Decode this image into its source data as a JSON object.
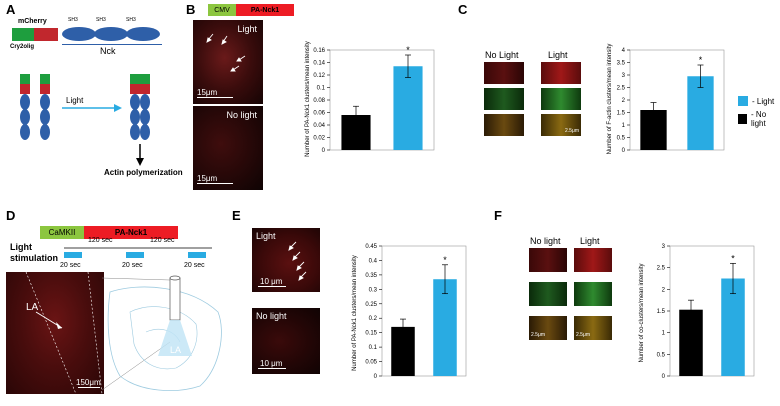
{
  "panels": {
    "A": {
      "label": "A",
      "construct": {
        "cry2olig": "Cry2olig",
        "mcherry": "mCherry",
        "sh3": [
          "SH3",
          "SH3",
          "SH3"
        ],
        "nck": "Nck"
      },
      "arrow_label": "Light",
      "result": "Actin polymerization"
    },
    "B": {
      "label": "B",
      "construct": {
        "promoter": "CMV",
        "gene": "PA-Nck1"
      },
      "images": [
        {
          "tag": "Light",
          "scale": "15μm"
        },
        {
          "tag": "No light",
          "scale": "15μm"
        }
      ],
      "ylabel": "Number of PA-Nck1 clusters/mean intensity",
      "ticks": [
        "0",
        "0.02",
        "0.04",
        "0.06",
        "0.08",
        "0.1",
        "0.12",
        "0.14",
        "0.16"
      ],
      "star": "*"
    },
    "C": {
      "label": "C",
      "col_labels": [
        "No Light",
        "Light"
      ],
      "ylabel": "Number of F-actin clusters/mean intensity",
      "ticks": [
        "0",
        "0.5",
        "1",
        "1.5",
        "2",
        "2.5",
        "3",
        "3.5",
        "4"
      ],
      "star": "*",
      "legend": [
        {
          "label": "- Light",
          "color": "#29abe2"
        },
        {
          "label": "- No light",
          "color": "#000000"
        }
      ],
      "scale": "2.5μm"
    },
    "D": {
      "label": "D",
      "construct": {
        "promoter": "CaMKII",
        "gene": "PA-Nck1"
      },
      "stim_label_1": "Light",
      "stim_label_2": "stimulation",
      "intervals": [
        "120 sec",
        "120 sec"
      ],
      "pulses": [
        "20 sec",
        "20 sec",
        "20 sec"
      ],
      "la_label": "LA",
      "la_brain": "LA",
      "scale": "150μm"
    },
    "E": {
      "label": "E",
      "images": [
        {
          "tag": "Light",
          "scale": "10 μm"
        },
        {
          "tag": "No light",
          "scale": "10 μm"
        }
      ],
      "ylabel": "Number of PA-Nck1 clusters/mean intensity",
      "ticks": [
        "0",
        "0.05",
        "0.1",
        "0.15",
        "0.2",
        "0.25",
        "0.3",
        "0.35",
        "0.4",
        "0.45"
      ],
      "star": "*"
    },
    "F": {
      "label": "F",
      "col_labels": [
        "No light",
        "Light"
      ],
      "ylabel": "Number of co-clusters/mean intensity",
      "ticks": [
        "0",
        "0.5",
        "1",
        "1.5",
        "2",
        "2.5",
        "3"
      ],
      "star": "*",
      "scale": "2.5μm"
    }
  },
  "colors": {
    "light": "#29abe2",
    "nolight": "#000000",
    "mcherry": "#c1272d",
    "cry2": "#1e9e3e",
    "nck": "#2e5fa8",
    "cmv": "#8cc63f",
    "gene": "#ed1c24"
  },
  "chart_data": [
    {
      "type": "bar",
      "categories": [
        "No light",
        "Light"
      ],
      "values": [
        0.056,
        0.134
      ],
      "errors": [
        0.014,
        0.018
      ],
      "ylim": [
        0,
        0.16
      ],
      "ylabel": "Number of PA-Nck1 clusters/mean intensity"
    },
    {
      "type": "bar",
      "categories": [
        "No light",
        "Light"
      ],
      "values": [
        1.6,
        2.95
      ],
      "errors": [
        0.3,
        0.45
      ],
      "ylim": [
        0,
        4
      ],
      "ylabel": "Number of F-actin clusters/mean intensity"
    },
    {
      "type": "bar",
      "categories": [
        "No light",
        "Light"
      ],
      "values": [
        0.17,
        0.335
      ],
      "errors": [
        0.027,
        0.05
      ],
      "ylim": [
        0,
        0.45
      ],
      "ylabel": "Number of PA-Nck1 clusters/mean intensity"
    },
    {
      "type": "bar",
      "categories": [
        "No light",
        "Light"
      ],
      "values": [
        1.53,
        2.25
      ],
      "errors": [
        0.22,
        0.35
      ],
      "ylim": [
        0,
        3
      ],
      "ylabel": "Number of co-clusters/mean intensity"
    }
  ]
}
